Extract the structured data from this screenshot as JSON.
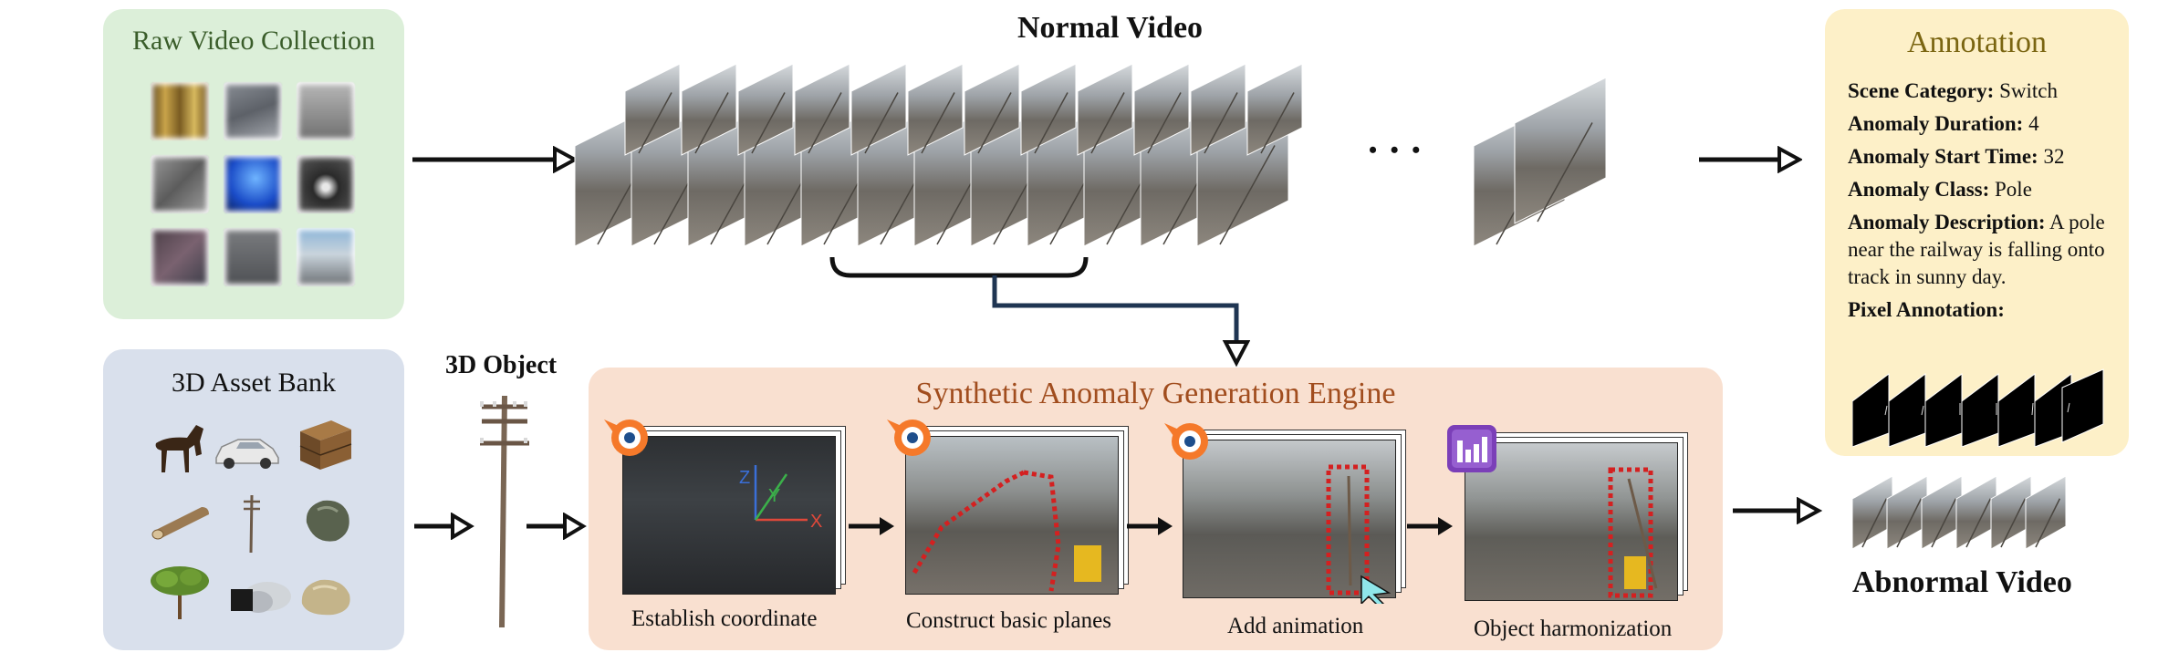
{
  "panels": {
    "raw_video_collection": {
      "title": "Raw Video Collection",
      "bg": "#dcefd9",
      "title_color": "#3a5d2a"
    },
    "asset_bank": {
      "title": "3D Asset Bank",
      "bg": "#d9e0ec",
      "title_color": "#333333"
    },
    "engine": {
      "title": "Synthetic Anomaly Generation Engine",
      "bg": "#f9e0d0",
      "title_color": "#a14d1e"
    },
    "annotation": {
      "title": "Annotation",
      "bg": "#fdf0c8",
      "title_color": "#7a6511"
    }
  },
  "labels": {
    "normal_video": "Normal Video",
    "object_3d": "3D Object",
    "abnormal_video": "Abnormal Video",
    "ellipsis": "• • •"
  },
  "steps": [
    {
      "caption": "Establish coordinate",
      "axes": {
        "x": "X",
        "y": "Y",
        "z": "Z"
      }
    },
    {
      "caption": "Construct basic planes"
    },
    {
      "caption": "Add animation"
    },
    {
      "caption": "Object harmonization"
    }
  ],
  "annotation": {
    "scene_category": {
      "key": "Scene Category:",
      "value": " Switch"
    },
    "anomaly_duration": {
      "key": "Anomaly Duration:",
      "value": " 4"
    },
    "anomaly_start_time": {
      "key": "Anomaly Start Time:",
      "value": " 32"
    },
    "anomaly_class": {
      "key": "Anomaly Class:",
      "value": " Pole"
    },
    "anomaly_description": {
      "key": "Anomaly Description:",
      "value": " A pole near the railway is falling onto track in sunny day."
    },
    "pixel_annotation": {
      "key": "Pixel Annotation:"
    }
  },
  "icons": [
    "blender-icon",
    "blender-icon",
    "blender-icon",
    "harmonization-icon",
    "pole-icon",
    "horse-icon",
    "car-icon",
    "crate-icon",
    "log-icon",
    "small-pole-icon",
    "rock-icon",
    "tree-icon",
    "smoke-icon",
    "boulder-icon"
  ],
  "colors": {
    "arrow": "#111111",
    "bracket_connector": "#1f3552",
    "red_mask": "#d42020",
    "blender_orange": "#f5792a",
    "harmonize_purple": "#7b3fb8"
  }
}
